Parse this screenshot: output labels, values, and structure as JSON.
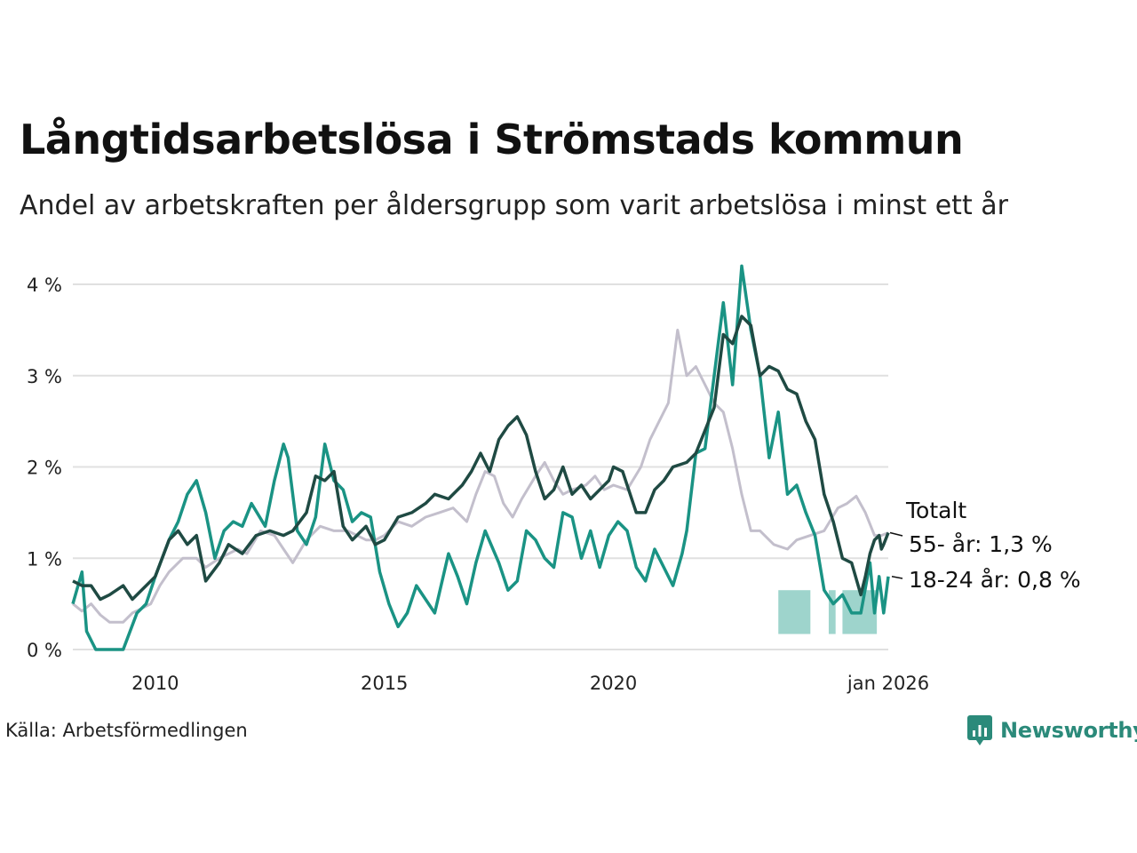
{
  "title": "Långtidsarbetslösa i Strömstads kommun",
  "subtitle": "Andel av arbetskraften per åldersgrupp som varit arbetslösa i minst ett år",
  "source": "Källa: Arbetsförmedlingen",
  "brand": "Newsworthy",
  "colors": {
    "total": "#c3bfcc",
    "age55": "#1f4a43",
    "age18_24": "#1a9384",
    "band": "#9ed4cc",
    "grid": "#e0e0e0",
    "brand": "#2b8a7a"
  },
  "chart_data": {
    "type": "line",
    "xlabel": "",
    "ylabel": "",
    "x_range": [
      2008.2,
      2026.0
    ],
    "ylim": [
      0,
      4
    ],
    "grid": true,
    "y_ticks": [
      {
        "value": 0,
        "label": "0 %"
      },
      {
        "value": 1,
        "label": "1 %"
      },
      {
        "value": 2,
        "label": "2 %"
      },
      {
        "value": 3,
        "label": "3 %"
      },
      {
        "value": 4,
        "label": "4 %"
      }
    ],
    "x_ticks": [
      {
        "value": 2010,
        "label": "2010"
      },
      {
        "value": 2015,
        "label": "2015"
      },
      {
        "value": 2020,
        "label": "2020"
      },
      {
        "value": 2026.0,
        "label": "jan 2026"
      }
    ],
    "series": [
      {
        "key": "total",
        "name": "Totalt",
        "label": "Totalt",
        "points": [
          [
            2008.2,
            0.5
          ],
          [
            2008.4,
            0.42
          ],
          [
            2008.6,
            0.5
          ],
          [
            2008.8,
            0.38
          ],
          [
            2009.0,
            0.3
          ],
          [
            2009.3,
            0.3
          ],
          [
            2009.5,
            0.4
          ],
          [
            2009.7,
            0.45
          ],
          [
            2009.9,
            0.5
          ],
          [
            2010.1,
            0.7
          ],
          [
            2010.3,
            0.85
          ],
          [
            2010.6,
            1.0
          ],
          [
            2010.9,
            1.0
          ],
          [
            2011.1,
            0.9
          ],
          [
            2011.4,
            1.0
          ],
          [
            2011.8,
            1.1
          ],
          [
            2012.0,
            1.05
          ],
          [
            2012.3,
            1.3
          ],
          [
            2012.6,
            1.25
          ],
          [
            2012.8,
            1.1
          ],
          [
            2013.0,
            0.95
          ],
          [
            2013.3,
            1.2
          ],
          [
            2013.6,
            1.35
          ],
          [
            2013.9,
            1.3
          ],
          [
            2014.2,
            1.3
          ],
          [
            2014.6,
            1.2
          ],
          [
            2014.8,
            1.2
          ],
          [
            2015.0,
            1.25
          ],
          [
            2015.3,
            1.4
          ],
          [
            2015.6,
            1.35
          ],
          [
            2015.9,
            1.45
          ],
          [
            2016.2,
            1.5
          ],
          [
            2016.5,
            1.55
          ],
          [
            2016.8,
            1.4
          ],
          [
            2017.0,
            1.7
          ],
          [
            2017.2,
            1.95
          ],
          [
            2017.4,
            1.9
          ],
          [
            2017.6,
            1.6
          ],
          [
            2017.8,
            1.45
          ],
          [
            2018.0,
            1.65
          ],
          [
            2018.3,
            1.9
          ],
          [
            2018.5,
            2.05
          ],
          [
            2018.7,
            1.85
          ],
          [
            2018.9,
            1.7
          ],
          [
            2019.1,
            1.75
          ],
          [
            2019.4,
            1.8
          ],
          [
            2019.6,
            1.9
          ],
          [
            2019.8,
            1.75
          ],
          [
            2020.0,
            1.8
          ],
          [
            2020.3,
            1.75
          ],
          [
            2020.6,
            2.0
          ],
          [
            2020.8,
            2.3
          ],
          [
            2021.0,
            2.5
          ],
          [
            2021.2,
            2.7
          ],
          [
            2021.4,
            3.5
          ],
          [
            2021.6,
            3.0
          ],
          [
            2021.8,
            3.1
          ],
          [
            2022.0,
            2.9
          ],
          [
            2022.2,
            2.7
          ],
          [
            2022.4,
            2.6
          ],
          [
            2022.6,
            2.2
          ],
          [
            2022.8,
            1.7
          ],
          [
            2023.0,
            1.3
          ],
          [
            2023.2,
            1.3
          ],
          [
            2023.5,
            1.15
          ],
          [
            2023.8,
            1.1
          ],
          [
            2024.0,
            1.2
          ],
          [
            2024.3,
            1.25
          ],
          [
            2024.6,
            1.3
          ],
          [
            2024.9,
            1.55
          ],
          [
            2025.1,
            1.6
          ],
          [
            2025.3,
            1.68
          ],
          [
            2025.5,
            1.5
          ],
          [
            2025.7,
            1.25
          ],
          [
            2025.85,
            1.25
          ],
          [
            2026.0,
            1.28
          ]
        ]
      },
      {
        "key": "age55",
        "name": "55- år",
        "label": "55- år: 1,3 %",
        "points": [
          [
            2008.2,
            0.75
          ],
          [
            2008.4,
            0.7
          ],
          [
            2008.6,
            0.7
          ],
          [
            2008.8,
            0.55
          ],
          [
            2009.0,
            0.6
          ],
          [
            2009.3,
            0.7
          ],
          [
            2009.5,
            0.55
          ],
          [
            2009.8,
            0.7
          ],
          [
            2010.0,
            0.8
          ],
          [
            2010.3,
            1.2
          ],
          [
            2010.5,
            1.3
          ],
          [
            2010.7,
            1.15
          ],
          [
            2010.9,
            1.25
          ],
          [
            2011.1,
            0.75
          ],
          [
            2011.4,
            0.95
          ],
          [
            2011.6,
            1.15
          ],
          [
            2011.9,
            1.05
          ],
          [
            2012.2,
            1.25
          ],
          [
            2012.5,
            1.3
          ],
          [
            2012.8,
            1.25
          ],
          [
            2013.0,
            1.3
          ],
          [
            2013.3,
            1.5
          ],
          [
            2013.5,
            1.9
          ],
          [
            2013.7,
            1.85
          ],
          [
            2013.9,
            1.95
          ],
          [
            2014.1,
            1.35
          ],
          [
            2014.3,
            1.2
          ],
          [
            2014.6,
            1.35
          ],
          [
            2014.8,
            1.15
          ],
          [
            2015.0,
            1.2
          ],
          [
            2015.3,
            1.45
          ],
          [
            2015.6,
            1.5
          ],
          [
            2015.9,
            1.6
          ],
          [
            2016.1,
            1.7
          ],
          [
            2016.4,
            1.65
          ],
          [
            2016.7,
            1.8
          ],
          [
            2016.9,
            1.95
          ],
          [
            2017.1,
            2.15
          ],
          [
            2017.3,
            1.95
          ],
          [
            2017.5,
            2.3
          ],
          [
            2017.7,
            2.45
          ],
          [
            2017.9,
            2.55
          ],
          [
            2018.1,
            2.35
          ],
          [
            2018.3,
            1.95
          ],
          [
            2018.5,
            1.65
          ],
          [
            2018.7,
            1.75
          ],
          [
            2018.9,
            2.0
          ],
          [
            2019.1,
            1.7
          ],
          [
            2019.3,
            1.8
          ],
          [
            2019.5,
            1.65
          ],
          [
            2019.7,
            1.75
          ],
          [
            2019.9,
            1.85
          ],
          [
            2020.0,
            2.0
          ],
          [
            2020.2,
            1.95
          ],
          [
            2020.5,
            1.5
          ],
          [
            2020.7,
            1.5
          ],
          [
            2020.9,
            1.75
          ],
          [
            2021.1,
            1.85
          ],
          [
            2021.3,
            2.0
          ],
          [
            2021.6,
            2.05
          ],
          [
            2021.8,
            2.15
          ],
          [
            2022.0,
            2.4
          ],
          [
            2022.2,
            2.65
          ],
          [
            2022.4,
            3.45
          ],
          [
            2022.6,
            3.35
          ],
          [
            2022.8,
            3.65
          ],
          [
            2023.0,
            3.55
          ],
          [
            2023.2,
            3.0
          ],
          [
            2023.4,
            3.1
          ],
          [
            2023.6,
            3.05
          ],
          [
            2023.8,
            2.85
          ],
          [
            2024.0,
            2.8
          ],
          [
            2024.2,
            2.5
          ],
          [
            2024.4,
            2.3
          ],
          [
            2024.6,
            1.7
          ],
          [
            2024.8,
            1.4
          ],
          [
            2025.0,
            1.0
          ],
          [
            2025.2,
            0.95
          ],
          [
            2025.4,
            0.6
          ],
          [
            2025.5,
            0.8
          ],
          [
            2025.6,
            1.05
          ],
          [
            2025.7,
            1.2
          ],
          [
            2025.8,
            1.25
          ],
          [
            2025.85,
            1.1
          ],
          [
            2025.9,
            1.15
          ],
          [
            2026.0,
            1.28
          ]
        ]
      },
      {
        "key": "age18_24",
        "name": "18-24 år",
        "label": "18-24 år: 0,8 %",
        "points": [
          [
            2008.2,
            0.5
          ],
          [
            2008.4,
            0.85
          ],
          [
            2008.5,
            0.2
          ],
          [
            2008.7,
            0.0
          ],
          [
            2009.0,
            0.0
          ],
          [
            2009.3,
            0.0
          ],
          [
            2009.6,
            0.4
          ],
          [
            2009.8,
            0.5
          ],
          [
            2010.0,
            0.8
          ],
          [
            2010.3,
            1.2
          ],
          [
            2010.5,
            1.4
          ],
          [
            2010.7,
            1.7
          ],
          [
            2010.9,
            1.85
          ],
          [
            2011.1,
            1.5
          ],
          [
            2011.3,
            1.0
          ],
          [
            2011.5,
            1.3
          ],
          [
            2011.7,
            1.4
          ],
          [
            2011.9,
            1.35
          ],
          [
            2012.1,
            1.6
          ],
          [
            2012.4,
            1.35
          ],
          [
            2012.6,
            1.85
          ],
          [
            2012.8,
            2.25
          ],
          [
            2012.9,
            2.1
          ],
          [
            2013.1,
            1.3
          ],
          [
            2013.3,
            1.15
          ],
          [
            2013.5,
            1.45
          ],
          [
            2013.7,
            2.25
          ],
          [
            2013.9,
            1.85
          ],
          [
            2014.1,
            1.75
          ],
          [
            2014.3,
            1.4
          ],
          [
            2014.5,
            1.5
          ],
          [
            2014.7,
            1.45
          ],
          [
            2014.9,
            0.85
          ],
          [
            2015.1,
            0.5
          ],
          [
            2015.3,
            0.25
          ],
          [
            2015.5,
            0.4
          ],
          [
            2015.7,
            0.7
          ],
          [
            2015.9,
            0.55
          ],
          [
            2016.1,
            0.4
          ],
          [
            2016.4,
            1.05
          ],
          [
            2016.6,
            0.8
          ],
          [
            2016.8,
            0.5
          ],
          [
            2017.0,
            0.95
          ],
          [
            2017.2,
            1.3
          ],
          [
            2017.5,
            0.95
          ],
          [
            2017.7,
            0.65
          ],
          [
            2017.9,
            0.75
          ],
          [
            2018.1,
            1.3
          ],
          [
            2018.3,
            1.2
          ],
          [
            2018.5,
            1.0
          ],
          [
            2018.7,
            0.9
          ],
          [
            2018.9,
            1.5
          ],
          [
            2019.1,
            1.45
          ],
          [
            2019.3,
            1.0
          ],
          [
            2019.5,
            1.3
          ],
          [
            2019.7,
            0.9
          ],
          [
            2019.9,
            1.25
          ],
          [
            2020.1,
            1.4
          ],
          [
            2020.3,
            1.3
          ],
          [
            2020.5,
            0.9
          ],
          [
            2020.7,
            0.75
          ],
          [
            2020.9,
            1.1
          ],
          [
            2021.1,
            0.9
          ],
          [
            2021.3,
            0.7
          ],
          [
            2021.5,
            1.05
          ],
          [
            2021.6,
            1.3
          ],
          [
            2021.8,
            2.15
          ],
          [
            2022.0,
            2.2
          ],
          [
            2022.2,
            3.0
          ],
          [
            2022.4,
            3.8
          ],
          [
            2022.6,
            2.9
          ],
          [
            2022.8,
            4.2
          ],
          [
            2023.0,
            3.5
          ],
          [
            2023.2,
            3.0
          ],
          [
            2023.4,
            2.1
          ],
          [
            2023.6,
            2.6
          ],
          [
            2023.8,
            1.7
          ],
          [
            2024.0,
            1.8
          ],
          [
            2024.2,
            1.5
          ],
          [
            2024.4,
            1.25
          ],
          [
            2024.6,
            0.65
          ],
          [
            2024.8,
            0.5
          ],
          [
            2025.0,
            0.6
          ],
          [
            2025.2,
            0.4
          ],
          [
            2025.4,
            0.4
          ],
          [
            2025.6,
            0.95
          ],
          [
            2025.7,
            0.4
          ],
          [
            2025.8,
            0.8
          ],
          [
            2025.9,
            0.4
          ],
          [
            2026.0,
            0.8
          ]
        ]
      }
    ]
  }
}
